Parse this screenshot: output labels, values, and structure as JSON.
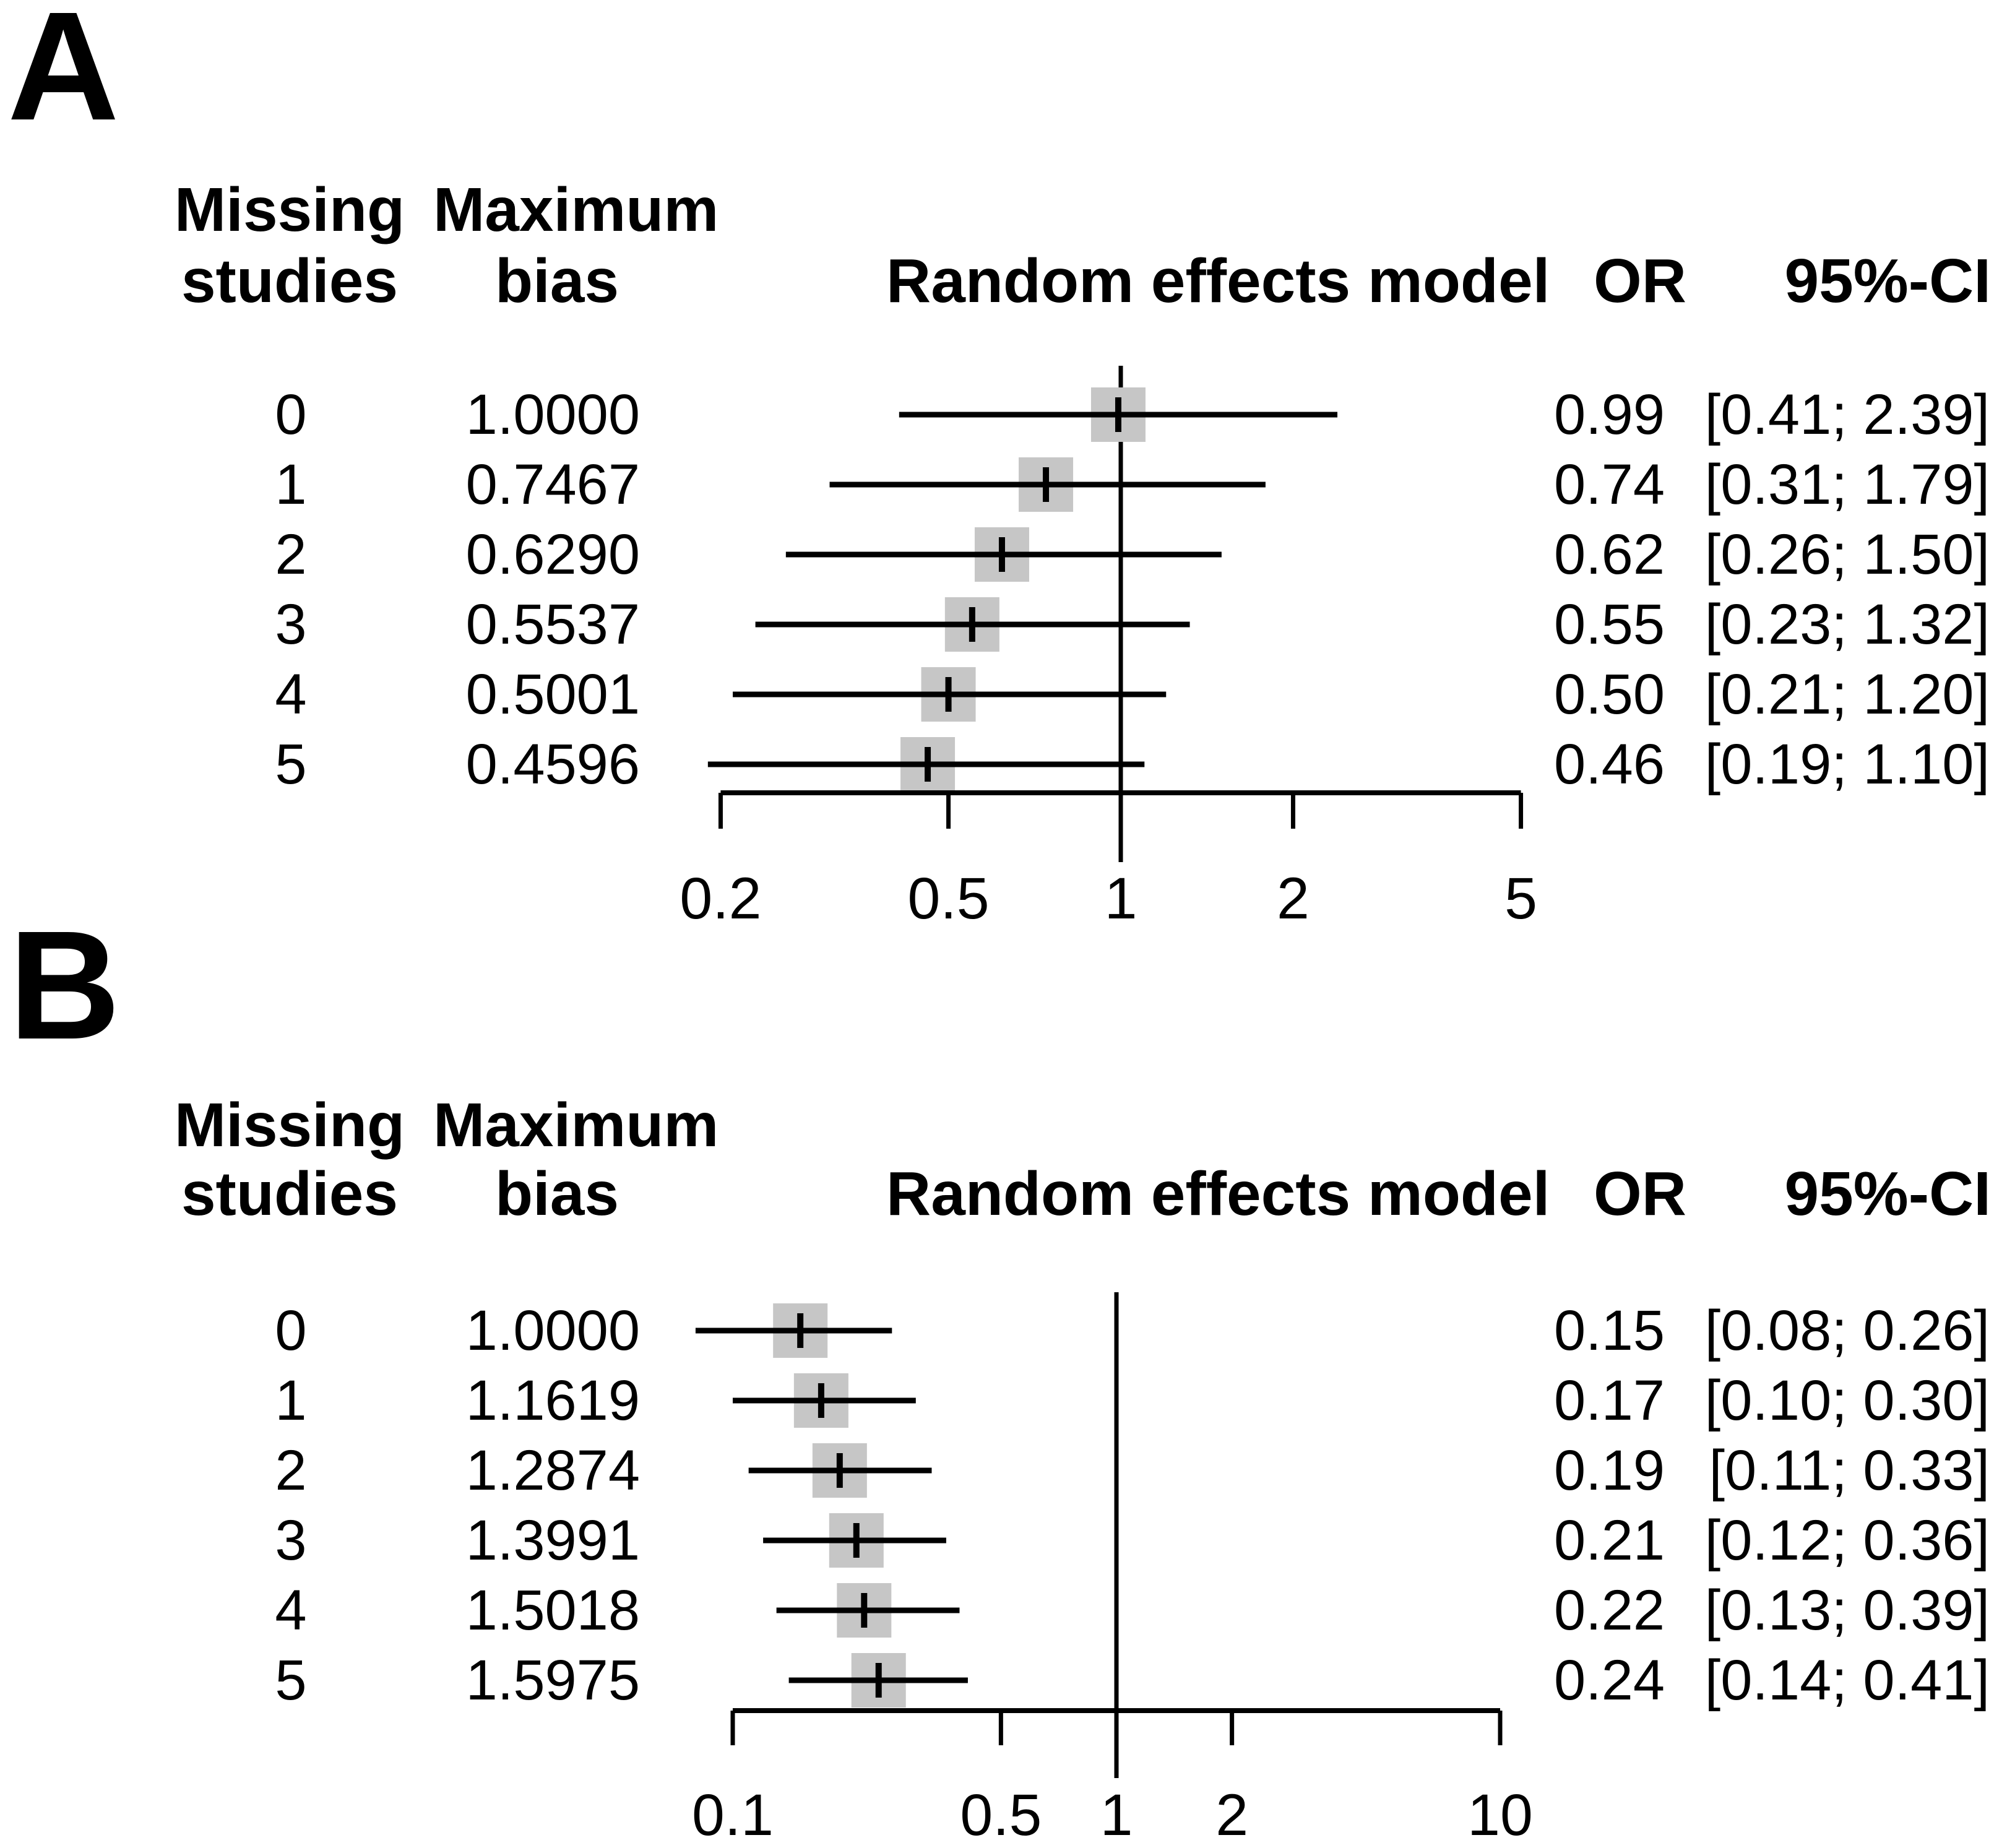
{
  "colors": {
    "background": "#ffffff",
    "square_fill": "#c6c6c6",
    "line": "#000000",
    "text": "#000000"
  },
  "panels": [
    {
      "label": "A",
      "header": {
        "col1_line1": "Missing",
        "col1_line2": "studies",
        "col2_line1": "Maximum",
        "col2_line2": "bias",
        "plot_title": "Random effects model",
        "or": "OR",
        "ci": "95%-CI"
      },
      "rows": [
        {
          "missing_studies": "0",
          "maximum_bias": "1.0000",
          "or": "0.99",
          "ci": "[0.41; 2.39]"
        },
        {
          "missing_studies": "1",
          "maximum_bias": "0.7467",
          "or": "0.74",
          "ci": "[0.31; 1.79]"
        },
        {
          "missing_studies": "2",
          "maximum_bias": "0.6290",
          "or": "0.62",
          "ci": "[0.26; 1.50]"
        },
        {
          "missing_studies": "3",
          "maximum_bias": "0.5537",
          "or": "0.55",
          "ci": "[0.23; 1.32]"
        },
        {
          "missing_studies": "4",
          "maximum_bias": "0.5001",
          "or": "0.50",
          "ci": "[0.21; 1.20]"
        },
        {
          "missing_studies": "5",
          "maximum_bias": "0.4596",
          "or": "0.46",
          "ci": "[0.19; 1.10]"
        }
      ]
    },
    {
      "label": "B",
      "header": {
        "col1_line1": "Missing",
        "col1_line2": "studies",
        "col2_line1": "Maximum",
        "col2_line2": "bias",
        "plot_title": "Random effects model",
        "or": "OR",
        "ci": "95%-CI"
      },
      "rows": [
        {
          "missing_studies": "0",
          "maximum_bias": "1.0000",
          "or": "0.15",
          "ci": "[0.08; 0.26]"
        },
        {
          "missing_studies": "1",
          "maximum_bias": "1.1619",
          "or": "0.17",
          "ci": "[0.10; 0.30]"
        },
        {
          "missing_studies": "2",
          "maximum_bias": "1.2874",
          "or": "0.19",
          "ci": "[0.11; 0.33]"
        },
        {
          "missing_studies": "3",
          "maximum_bias": "1.3991",
          "or": "0.21",
          "ci": "[0.12; 0.36]"
        },
        {
          "missing_studies": "4",
          "maximum_bias": "1.5018",
          "or": "0.22",
          "ci": "[0.13; 0.39]"
        },
        {
          "missing_studies": "5",
          "maximum_bias": "1.5975",
          "or": "0.24",
          "ci": "[0.14; 0.41]"
        }
      ]
    }
  ],
  "chart_data": [
    {
      "type": "scatter",
      "subtype": "forest_plot",
      "panel": "A",
      "title": "Random effects model",
      "xlabel": "",
      "ylabel": "Missing studies",
      "x_scale": "log",
      "x_range": [
        0.2,
        5
      ],
      "x_ticks": [
        0.2,
        0.5,
        1,
        2,
        5
      ],
      "x_tick_labels": [
        "0.2",
        "0.5",
        "1",
        "2",
        "5"
      ],
      "reference_line": 1,
      "grid": false,
      "legend": "none",
      "rows": [
        {
          "missing_studies": 0,
          "maximum_bias": 1.0,
          "or": 0.99,
          "ci_lower": 0.41,
          "ci_upper": 2.39
        },
        {
          "missing_studies": 1,
          "maximum_bias": 0.7467,
          "or": 0.74,
          "ci_lower": 0.31,
          "ci_upper": 1.79
        },
        {
          "missing_studies": 2,
          "maximum_bias": 0.629,
          "or": 0.62,
          "ci_lower": 0.26,
          "ci_upper": 1.5
        },
        {
          "missing_studies": 3,
          "maximum_bias": 0.5537,
          "or": 0.55,
          "ci_lower": 0.23,
          "ci_upper": 1.32
        },
        {
          "missing_studies": 4,
          "maximum_bias": 0.5001,
          "or": 0.5,
          "ci_lower": 0.21,
          "ci_upper": 1.2
        },
        {
          "missing_studies": 5,
          "maximum_bias": 0.4596,
          "or": 0.46,
          "ci_lower": 0.19,
          "ci_upper": 1.1
        }
      ]
    },
    {
      "type": "scatter",
      "subtype": "forest_plot",
      "panel": "B",
      "title": "Random effects model",
      "xlabel": "",
      "ylabel": "Missing studies",
      "x_scale": "log",
      "x_range": [
        0.1,
        10
      ],
      "x_ticks": [
        0.1,
        0.5,
        1,
        2,
        10
      ],
      "x_tick_labels": [
        "0.1",
        "0.5",
        "1",
        "2",
        "10"
      ],
      "reference_line": 1,
      "grid": false,
      "legend": "none",
      "rows": [
        {
          "missing_studies": 0,
          "maximum_bias": 1.0,
          "or": 0.15,
          "ci_lower": 0.08,
          "ci_upper": 0.26
        },
        {
          "missing_studies": 1,
          "maximum_bias": 1.1619,
          "or": 0.17,
          "ci_lower": 0.1,
          "ci_upper": 0.3
        },
        {
          "missing_studies": 2,
          "maximum_bias": 1.2874,
          "or": 0.19,
          "ci_lower": 0.11,
          "ci_upper": 0.33
        },
        {
          "missing_studies": 3,
          "maximum_bias": 1.3991,
          "or": 0.21,
          "ci_lower": 0.12,
          "ci_upper": 0.36
        },
        {
          "missing_studies": 4,
          "maximum_bias": 1.5018,
          "or": 0.22,
          "ci_lower": 0.13,
          "ci_upper": 0.39
        },
        {
          "missing_studies": 5,
          "maximum_bias": 1.5975,
          "or": 0.24,
          "ci_lower": 0.14,
          "ci_upper": 0.41
        }
      ]
    }
  ]
}
